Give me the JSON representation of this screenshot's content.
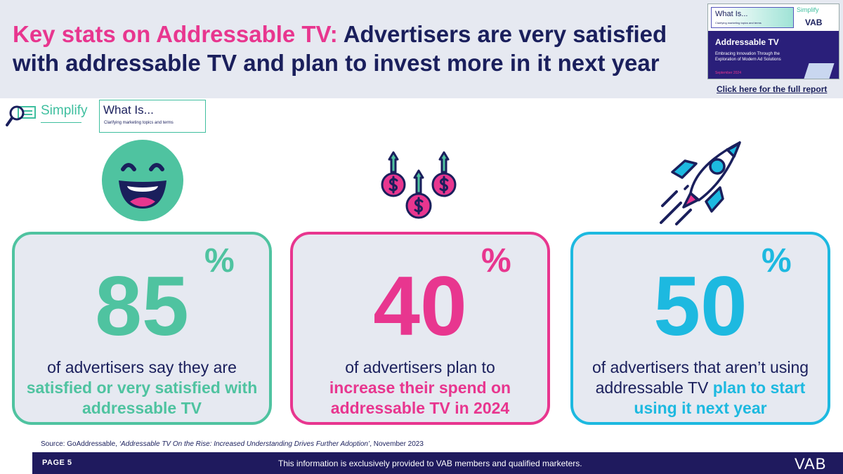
{
  "header": {
    "title_accent": "Key stats on Addressable TV:",
    "title_rest": " Advertisers are very satisfied with addressable TV and plan to invest more in it next year",
    "report_link": "Click here for the full report"
  },
  "report_thumbnail": {
    "whatis": "What Is...",
    "whatis_sub": "Clarifying marketing topics and terms",
    "simplify": "Simplify",
    "vab": "VAB",
    "title": "Addressable TV",
    "subtitle": "Embracing Innovation Through the Exploration of Modern Ad Solutions",
    "date": "September 2024"
  },
  "branding": {
    "simplify": "Simplify",
    "whatis": "What Is...",
    "whatis_sub": "Clarifying marketing topics and terms"
  },
  "stats": [
    {
      "value": "85",
      "unit": "%",
      "text_before": "of advertisers say they are",
      "highlight": "satisfied or very satisfied with addressable TV",
      "text_after": "",
      "icon": "smiley-face-icon",
      "color": "#4fc3a0"
    },
    {
      "value": "40",
      "unit": "%",
      "text_before": "of advertisers plan to",
      "highlight": "increase their spend on addressable TV in 2024",
      "text_after": "",
      "icon": "money-growth-icon",
      "color": "#e8368f"
    },
    {
      "value": "50",
      "unit": "%",
      "text_before": "of advertisers that aren’t using addressable TV",
      "highlight": "plan to start using it next year",
      "text_after": "",
      "icon": "rocket-icon",
      "color": "#1db9e0"
    }
  ],
  "source": {
    "prefix": "Source: GoAddressable, ",
    "title": "‘Addressable TV On the Rise: Increased Understanding Drives Further Adoption’",
    "suffix": ", November 2023"
  },
  "footer": {
    "page": "PAGE 5",
    "note": "This information is exclusively provided to VAB members and qualified marketers.",
    "logo": "VAB"
  },
  "colors": {
    "navy": "#1a1f5c",
    "pink": "#e8368f",
    "teal": "#4fc3a0",
    "cyan": "#1db9e0",
    "footer": "#1f1a5e"
  }
}
